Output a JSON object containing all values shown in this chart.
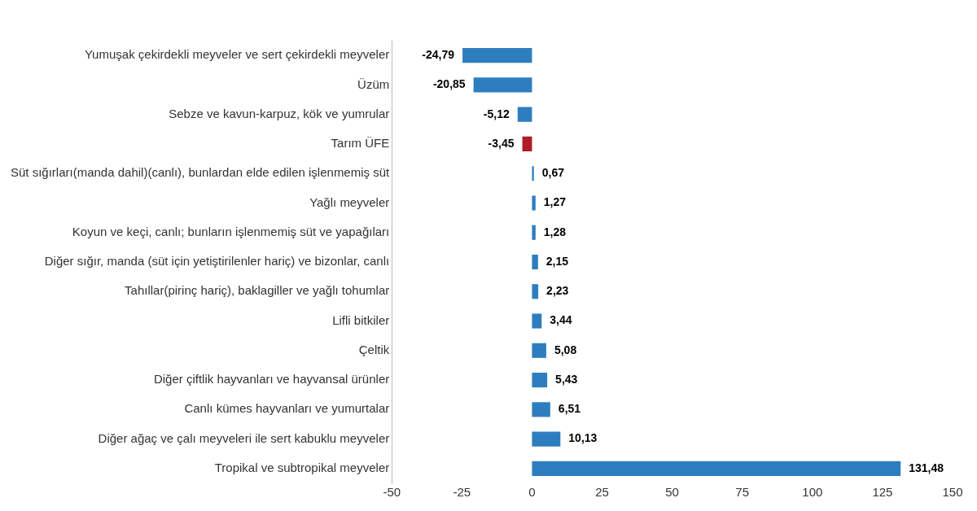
{
  "chart_data": {
    "type": "bar",
    "orientation": "horizontal",
    "categories": [
      "Yumuşak çekirdekli meyveler ve sert çekirdekli meyveler",
      "Üzüm",
      "Sebze ve kavun-karpuz, kök ve yumrular",
      "Tarım ÜFE",
      "Süt sığırları(manda dahil)(canlı), bunlardan elde edilen işlenmemiş süt",
      "Yağlı meyveler",
      "Koyun ve keçi, canlı; bunların işlenmemiş süt ve yapağıları",
      "Diğer sığır, manda (süt için yetiştirilenler hariç) ve bizonlar, canlı",
      "Tahıllar(pirinç hariç), baklagiller ve yağlı tohumlar",
      "Lifli bitkiler",
      "Çeltik",
      "Diğer çiftlik hayvanları ve hayvansal ürünler",
      "Canlı kümes hayvanları ve yumurtalar",
      "Diğer ağaç ve çalı meyveleri ile sert kabuklu meyveler",
      "Tropikal ve subtropikal meyveler"
    ],
    "values": [
      -24.79,
      -20.85,
      -5.12,
      -3.45,
      0.67,
      1.27,
      1.28,
      2.15,
      2.23,
      3.44,
      5.08,
      5.43,
      6.51,
      10.13,
      131.48
    ],
    "colors": [
      "#2e7ebf",
      "#2e7ebf",
      "#2e7ebf",
      "#b01c24",
      "#2e7ebf",
      "#2e7ebf",
      "#2e7ebf",
      "#2e7ebf",
      "#2e7ebf",
      "#2e7ebf",
      "#2e7ebf",
      "#2e7ebf",
      "#2e7ebf",
      "#2e7ebf",
      "#2e7ebf"
    ],
    "value_labels": [
      "-24,79",
      "-20,85",
      "-5,12",
      "-3,45",
      "0,67",
      "1,27",
      "1,28",
      "2,15",
      "2,23",
      "3,44",
      "5,08",
      "5,43",
      "6,51",
      "10,13",
      "131,48"
    ],
    "xlim": [
      -50,
      150
    ],
    "xticks": [
      -50,
      -25,
      0,
      25,
      50,
      75,
      100,
      125,
      150
    ],
    "grid": false,
    "legend": false
  }
}
